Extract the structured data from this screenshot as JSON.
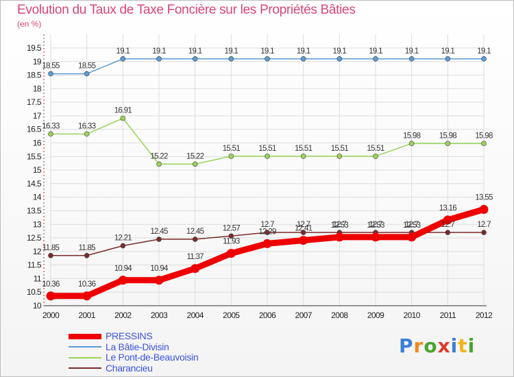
{
  "chart_data": {
    "type": "line",
    "title": "Evolution du Taux de Taxe Foncière sur les Propriétés Bâties",
    "unit_label": "(en %)",
    "x": [
      "2000",
      "2001",
      "2002",
      "2003",
      "2004",
      "2005",
      "2006",
      "2007",
      "2008",
      "2009",
      "2010",
      "2011",
      "2012"
    ],
    "ylim": [
      10,
      19.5
    ],
    "yticks": [
      "10",
      "10.5",
      "11",
      "11.5",
      "12",
      "12.5",
      "13",
      "13.5",
      "14",
      "14.5",
      "15",
      "15.5",
      "16",
      "16.5",
      "17",
      "17.5",
      "18",
      "18.5",
      "19",
      "19.5"
    ],
    "series": [
      {
        "name": "PRESSINS",
        "color": "#ee0000",
        "values": [
          10.36,
          10.36,
          10.94,
          10.94,
          11.37,
          11.93,
          12.29,
          12.41,
          12.53,
          12.53,
          12.53,
          13.16,
          13.55
        ]
      },
      {
        "name": "La Bâtie-Divisin",
        "color": "#5b9ad5",
        "values": [
          18.55,
          18.55,
          19.1,
          19.1,
          19.1,
          19.1,
          19.1,
          19.1,
          19.1,
          19.1,
          19.1,
          19.1,
          19.1
        ]
      },
      {
        "name": "Le Pont-de-Beauvoisin",
        "color": "#99d35a",
        "values": [
          16.33,
          16.33,
          16.91,
          15.22,
          15.22,
          15.51,
          15.51,
          15.51,
          15.51,
          15.51,
          15.98,
          15.98,
          15.98
        ]
      },
      {
        "name": "Charancieu",
        "color": "#7a2b2b",
        "values": [
          11.85,
          11.85,
          12.21,
          12.45,
          12.45,
          12.57,
          12.7,
          12.7,
          12.7,
          12.7,
          12.7,
          12.7,
          12.7
        ]
      }
    ]
  },
  "brand": {
    "letters": [
      "P",
      "r",
      "o",
      "x",
      "i",
      "t",
      "i"
    ],
    "colors": [
      "#3b7fd8",
      "#f08a1c",
      "#4aa52e",
      "#e03a2e",
      "#3b7fd8",
      "#f0b51c",
      "#4aa52e"
    ]
  }
}
